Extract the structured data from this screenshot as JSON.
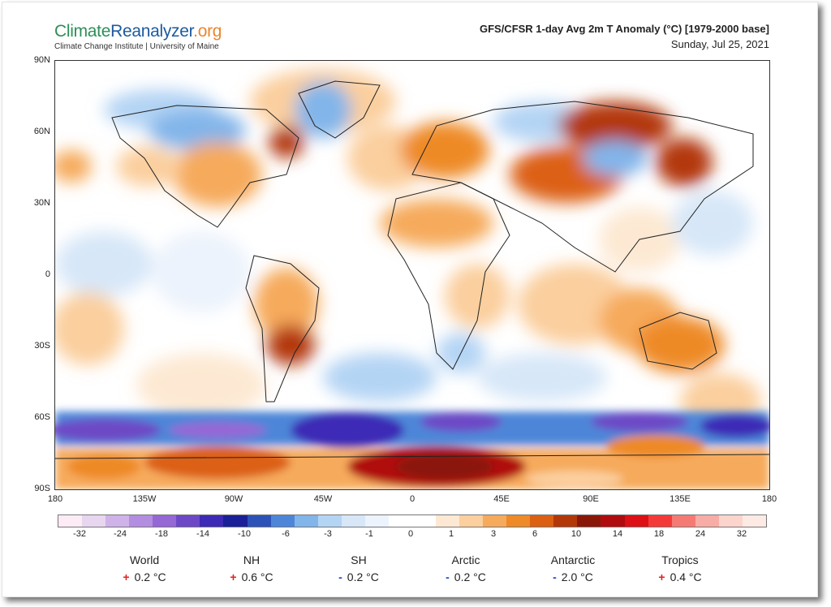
{
  "header": {
    "logo_part1": "Climate",
    "logo_part2": "Reanalyzer",
    "logo_part3": ".org",
    "logo_subtitle": "Climate Change Institute | University of Maine",
    "title": "GFS/CFSR 1-day Avg 2m T Anomaly (°C) [1979-2000 base]",
    "date": "Sunday, Jul 25, 2021"
  },
  "axes": {
    "lat_ticks": [
      "90N",
      "60N",
      "30N",
      "0",
      "30S",
      "60S",
      "90S"
    ],
    "lon_ticks": [
      "180",
      "135W",
      "90W",
      "45W",
      "0",
      "45E",
      "90E",
      "135E",
      "180"
    ]
  },
  "colorbar": {
    "labels": [
      "-32",
      "-24",
      "-18",
      "-14",
      "-10",
      "-6",
      "-3",
      "-1",
      "0",
      "1",
      "3",
      "6",
      "10",
      "14",
      "18",
      "24",
      "32"
    ],
    "colors": [
      "#fdebf5",
      "#e8d6f0",
      "#cfb3e8",
      "#b38ee0",
      "#9568d6",
      "#6d48c6",
      "#3d2ab6",
      "#1b2098",
      "#2c52b8",
      "#4d86d8",
      "#82b5ea",
      "#b4d4f4",
      "#d7e7f8",
      "#ecf3fc",
      "#ffffff",
      "#ffffff",
      "#fde9d3",
      "#fbcf9e",
      "#f6aa5c",
      "#ee8a28",
      "#dc6012",
      "#b33808",
      "#8a1808",
      "#b00c10",
      "#dc1015",
      "#f43a38",
      "#f67a74",
      "#f8aca6",
      "#fbd4cc",
      "#fdeae4"
    ]
  },
  "stats": [
    {
      "label": "World",
      "sign": "+",
      "value": "0.2 °C"
    },
    {
      "label": "NH",
      "sign": "+",
      "value": "0.6 °C"
    },
    {
      "label": "SH",
      "sign": "-",
      "value": "0.2 °C"
    },
    {
      "label": "Arctic",
      "sign": "-",
      "value": "0.2 °C"
    },
    {
      "label": "Antarctic",
      "sign": "-",
      "value": "2.0 °C"
    },
    {
      "label": "Tropics",
      "sign": "+",
      "value": "0.4 °C"
    }
  ]
}
